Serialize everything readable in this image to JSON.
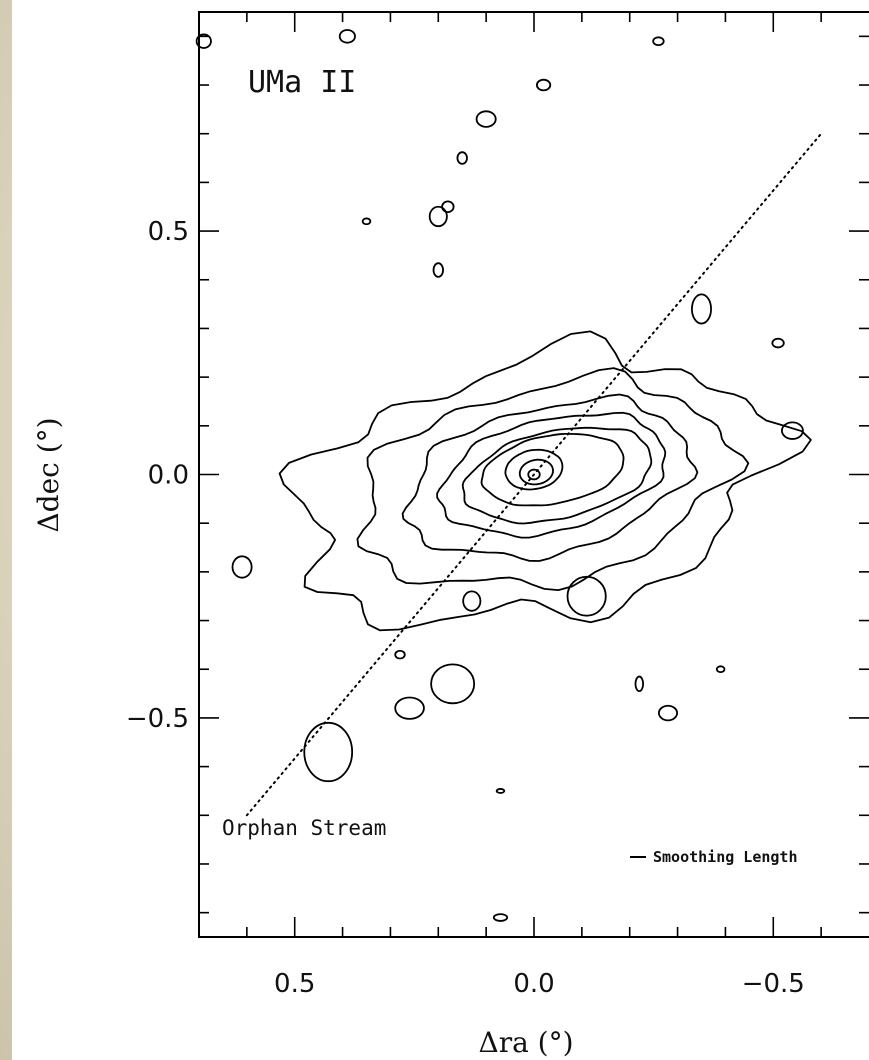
{
  "chart_data": {
    "type": "contour",
    "title": "",
    "xlabel": "Δra (°)",
    "ylabel": "Δdec (°)",
    "xlim": [
      0.7,
      -0.7
    ],
    "ylim": [
      -0.95,
      0.95
    ],
    "x_ticks": [
      "0.5",
      "0.0",
      "−0.5"
    ],
    "y_ticks": [
      "0.5",
      "0.0",
      "−0.5"
    ],
    "x_tick_values": [
      0.5,
      0.0,
      -0.5
    ],
    "y_tick_values": [
      0.5,
      0.0,
      -0.5
    ],
    "annotations": {
      "object": "UMa II",
      "stream": "Orphan Stream",
      "smoothing": "Smoothing Length"
    },
    "center": [
      0.0,
      0.0
    ],
    "orphan_stream_line": {
      "x": [
        0.6,
        -0.6
      ],
      "y": [
        -0.7,
        0.7
      ]
    },
    "contour_levels": [
      {
        "level": 1,
        "center": [
          0.0,
          -0.03
        ],
        "semi_axes": [
          0.5,
          0.26
        ],
        "angle_deg": 12,
        "rough": 0.09
      },
      {
        "level": 2,
        "center": [
          -0.02,
          -0.02
        ],
        "semi_axes": [
          0.39,
          0.2
        ],
        "angle_deg": 12,
        "rough": 0.06
      },
      {
        "level": 3,
        "center": [
          -0.03,
          -0.01
        ],
        "semi_axes": [
          0.3,
          0.15
        ],
        "angle_deg": 13,
        "rough": 0.045
      },
      {
        "level": 4,
        "center": [
          -0.04,
          0.0
        ],
        "semi_axes": [
          0.24,
          0.115
        ],
        "angle_deg": 13,
        "rough": 0.03
      },
      {
        "level": 5,
        "center": [
          -0.05,
          0.0
        ],
        "semi_axes": [
          0.2,
          0.09
        ],
        "angle_deg": 12,
        "rough": 0.02
      },
      {
        "level": 6,
        "center": [
          -0.04,
          0.01
        ],
        "semi_axes": [
          0.15,
          0.07
        ],
        "angle_deg": 10,
        "rough": 0.012
      },
      {
        "level": 7,
        "center": [
          0.0,
          0.01
        ],
        "semi_axes": [
          0.06,
          0.04
        ],
        "angle_deg": 10,
        "rough": 0.005
      },
      {
        "level": 8,
        "center": [
          -0.005,
          0.005
        ],
        "semi_axes": [
          0.035,
          0.025
        ],
        "angle_deg": 10,
        "rough": 0.0
      },
      {
        "level": 9,
        "center": [
          0.0,
          0.0
        ],
        "semi_axes": [
          0.012,
          0.01
        ],
        "angle_deg": 0,
        "rough": 0.0
      }
    ],
    "isolated_blobs": [
      {
        "center": [
          0.69,
          0.89
        ],
        "semi_axes": [
          0.015,
          0.014
        ]
      },
      {
        "center": [
          0.39,
          0.9
        ],
        "semi_axes": [
          0.016,
          0.013
        ]
      },
      {
        "center": [
          -0.26,
          0.89
        ],
        "semi_axes": [
          0.011,
          0.008
        ]
      },
      {
        "center": [
          -0.02,
          0.8
        ],
        "semi_axes": [
          0.014,
          0.011
        ]
      },
      {
        "center": [
          0.1,
          0.73
        ],
        "semi_axes": [
          0.02,
          0.016
        ]
      },
      {
        "center": [
          0.15,
          0.65
        ],
        "semi_axes": [
          0.01,
          0.012
        ]
      },
      {
        "center": [
          0.2,
          0.53
        ],
        "semi_axes": [
          0.018,
          0.02
        ]
      },
      {
        "center": [
          0.18,
          0.55
        ],
        "semi_axes": [
          0.012,
          0.011
        ]
      },
      {
        "center": [
          0.35,
          0.52
        ],
        "semi_axes": [
          0.008,
          0.006
        ]
      },
      {
        "center": [
          0.2,
          0.42
        ],
        "semi_axes": [
          0.01,
          0.014
        ]
      },
      {
        "center": [
          -0.35,
          0.34
        ],
        "semi_axes": [
          0.02,
          0.03
        ]
      },
      {
        "center": [
          -0.54,
          0.09
        ],
        "semi_axes": [
          0.022,
          0.017
        ]
      },
      {
        "center": [
          -0.51,
          0.27
        ],
        "semi_axes": [
          0.012,
          0.009
        ]
      },
      {
        "center": [
          0.61,
          -0.19
        ],
        "semi_axes": [
          0.02,
          0.022
        ]
      },
      {
        "center": [
          0.28,
          -0.37
        ],
        "semi_axes": [
          0.01,
          0.008
        ]
      },
      {
        "center": [
          0.17,
          -0.43
        ],
        "semi_axes": [
          0.045,
          0.04
        ]
      },
      {
        "center": [
          0.26,
          -0.48
        ],
        "semi_axes": [
          0.03,
          0.022
        ]
      },
      {
        "center": [
          0.43,
          -0.57
        ],
        "semi_axes": [
          0.05,
          0.06
        ]
      },
      {
        "center": [
          0.13,
          -0.26
        ],
        "semi_axes": [
          0.018,
          0.02
        ]
      },
      {
        "center": [
          -0.11,
          -0.25
        ],
        "semi_axes": [
          0.04,
          0.04
        ]
      },
      {
        "center": [
          -0.28,
          -0.49
        ],
        "semi_axes": [
          0.019,
          0.015
        ]
      },
      {
        "center": [
          -0.22,
          -0.43
        ],
        "semi_axes": [
          0.008,
          0.015
        ]
      },
      {
        "center": [
          -0.39,
          -0.4
        ],
        "semi_axes": [
          0.008,
          0.006
        ]
      },
      {
        "center": [
          0.07,
          -0.91
        ],
        "semi_axes": [
          0.014,
          0.007
        ]
      },
      {
        "center": [
          0.07,
          -0.65
        ],
        "semi_axes": [
          0.008,
          0.004
        ]
      }
    ]
  }
}
